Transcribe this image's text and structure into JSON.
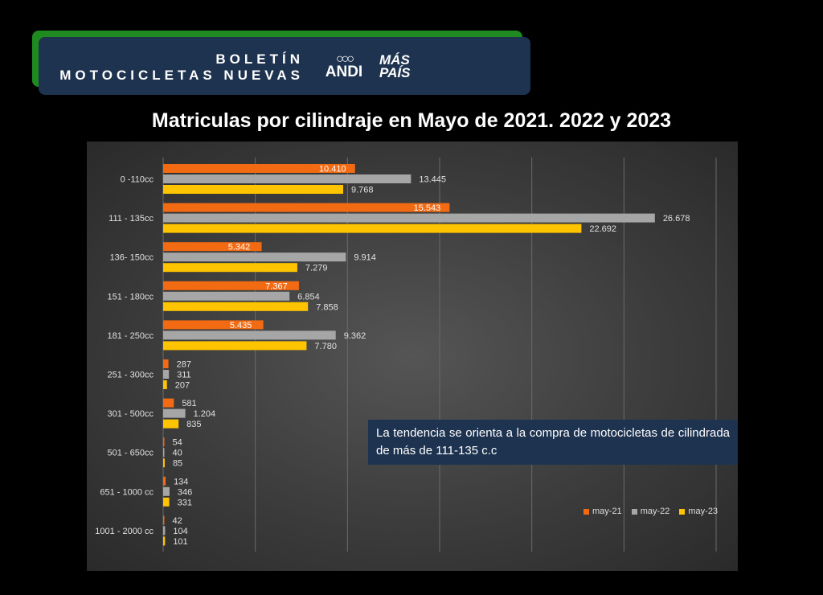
{
  "header": {
    "bulletin_line1": "BOLETÍN",
    "bulletin_line2": "MOTOCICLETAS NUEVAS",
    "andi_logo_text": "ANDI",
    "mas_pais_line1": "MÁS",
    "mas_pais_line2": "PAÍS"
  },
  "note": "La tendencia se orienta a la compra de motocicletas de cilindrada de más de  111-135 c.c",
  "colors": {
    "may-21": "#f26a12",
    "may-22": "#a6a6a6",
    "may-23": "#ffc400"
  },
  "chart_data": {
    "type": "bar",
    "orientation": "horizontal",
    "title": "Matriculas por cilindraje en Mayo de 2021. 2022 y 2023",
    "categories": [
      "0 -110cc",
      "111 - 135cc",
      "136- 150cc",
      "151 - 180cc",
      "181 - 250cc",
      "251 - 300cc",
      "301 - 500cc",
      "501 - 650cc",
      "651 - 1000 cc",
      "1001 - 2000 cc"
    ],
    "series": [
      {
        "name": "may-21",
        "values": [
          10410,
          15543,
          5342,
          7367,
          5435,
          287,
          581,
          54,
          134,
          42
        ],
        "labels": [
          "10.410",
          "15.543",
          "5.342",
          "7.367",
          "5.435",
          "287",
          "581",
          "54",
          "134",
          "42"
        ]
      },
      {
        "name": "may-22",
        "values": [
          13445,
          26678,
          9914,
          6854,
          9362,
          311,
          1204,
          40,
          346,
          104
        ],
        "labels": [
          "13.445",
          "26.678",
          "9.914",
          "6.854",
          "9.362",
          "311",
          "1.204",
          "40",
          "346",
          "104"
        ]
      },
      {
        "name": "may-23",
        "values": [
          9768,
          22692,
          7279,
          7858,
          7780,
          207,
          835,
          85,
          331,
          101
        ],
        "labels": [
          "9.768",
          "22.692",
          "7.279",
          "7.858",
          "7.780",
          "207",
          "835",
          "85",
          "331",
          "101"
        ]
      }
    ],
    "xlim": [
      0,
      30000
    ],
    "grid": true,
    "legend": "bottom-right"
  }
}
